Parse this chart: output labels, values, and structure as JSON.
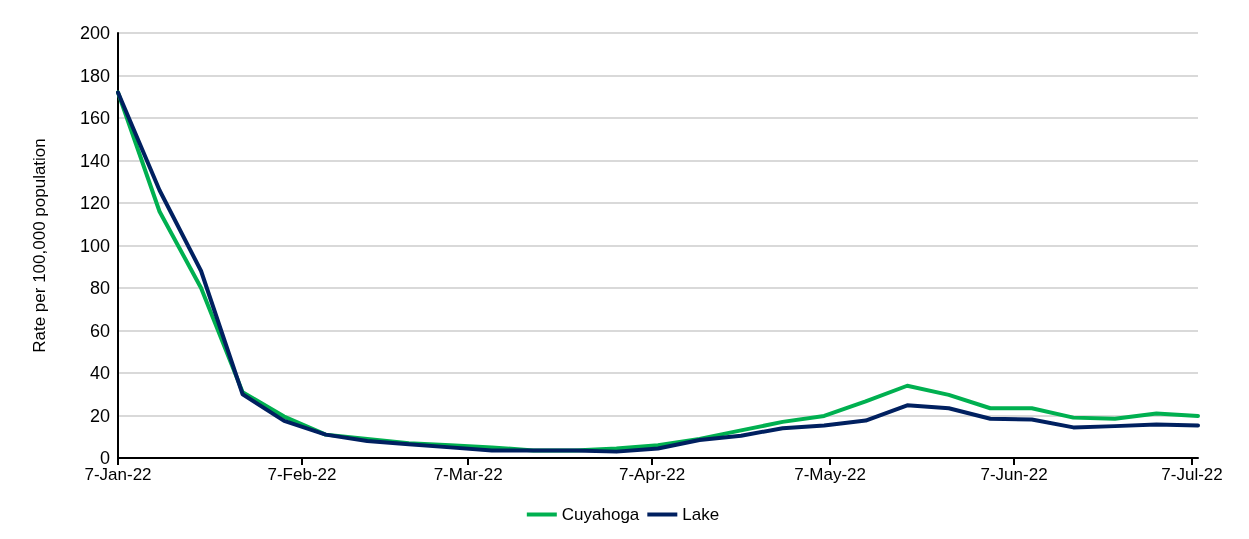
{
  "chart_data": {
    "type": "line",
    "ylabel": "Rate per 100,000 population",
    "x": [
      "2022-01-07",
      "2022-01-14",
      "2022-01-21",
      "2022-01-28",
      "2022-02-04",
      "2022-02-11",
      "2022-02-18",
      "2022-02-25",
      "2022-03-04",
      "2022-03-11",
      "2022-03-18",
      "2022-03-25",
      "2022-04-01",
      "2022-04-08",
      "2022-04-15",
      "2022-04-22",
      "2022-04-29",
      "2022-05-06",
      "2022-05-13",
      "2022-05-20",
      "2022-05-27",
      "2022-06-03",
      "2022-06-10",
      "2022-06-17",
      "2022-06-24",
      "2022-07-01",
      "2022-07-08"
    ],
    "series": [
      {
        "name": "Cuyahoga",
        "color": "#00b050",
        "values": [
          172,
          116,
          80,
          31,
          19.5,
          11,
          9,
          7,
          6,
          5,
          3.5,
          3.5,
          4.5,
          6,
          9,
          13,
          17,
          19.8,
          26.6,
          34,
          29.7,
          23.4,
          23.4,
          19,
          18.5,
          20.9,
          19.8
        ]
      },
      {
        "name": "Lake",
        "color": "#002060",
        "values": [
          172,
          126,
          88,
          30,
          17.5,
          11,
          8,
          6.5,
          5,
          3.5,
          3.5,
          3.5,
          3,
          4.5,
          8.5,
          10.5,
          14,
          15.3,
          17.6,
          24.8,
          23.4,
          18.5,
          18.1,
          14.4,
          15,
          15.8,
          15.3
        ]
      }
    ],
    "xlim": [
      "2022-01-07",
      "2022-07-08"
    ],
    "xticks": [
      {
        "value": "2022-01-07",
        "label": "7-Jan-22"
      },
      {
        "value": "2022-02-07",
        "label": "7-Feb-22"
      },
      {
        "value": "2022-03-07",
        "label": "7-Mar-22"
      },
      {
        "value": "2022-04-07",
        "label": "7-Apr-22"
      },
      {
        "value": "2022-05-07",
        "label": "7-May-22"
      },
      {
        "value": "2022-06-07",
        "label": "7-Jun-22"
      },
      {
        "value": "2022-07-07",
        "label": "7-Jul-22"
      }
    ],
    "ylim": [
      0,
      200
    ],
    "yticks": [
      0,
      20,
      40,
      60,
      80,
      100,
      120,
      140,
      160,
      180,
      200
    ],
    "grid": "y",
    "legend": "bottom",
    "marker": "none",
    "line_style": "solid"
  }
}
